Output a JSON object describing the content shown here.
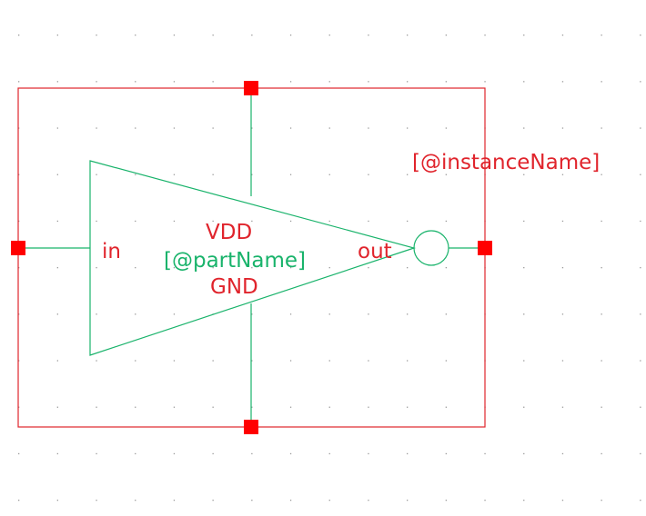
{
  "symbol": {
    "instance_label": "[@instanceName]",
    "part_label": "[@partName]",
    "power_label": "VDD",
    "ground_label": "GND",
    "input_label": "in",
    "output_label": "out"
  },
  "colors": {
    "boundary": "#e0242c",
    "body": "#19b36b",
    "pin": "#ff0000",
    "grid_dot": "#9a9a9a"
  },
  "icons": [
    "inverter-triangle-icon",
    "bubble-icon"
  ]
}
